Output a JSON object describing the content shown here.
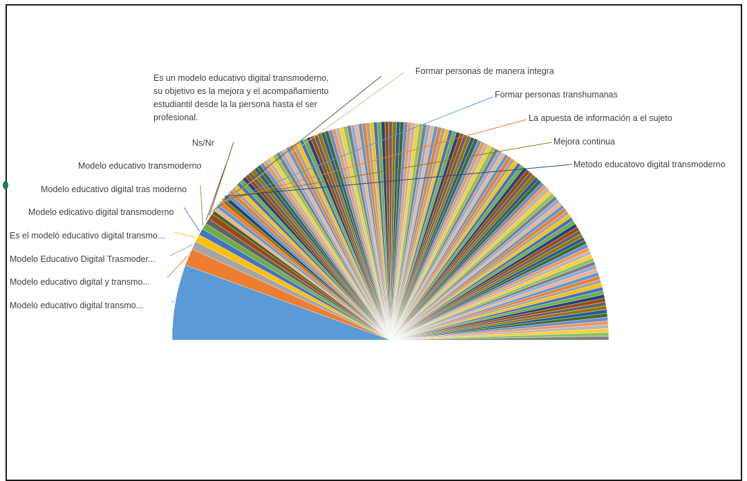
{
  "chart_data": {
    "type": "pie",
    "title": "",
    "palette": [
      "#5B9BD5",
      "#ED7D31",
      "#A5A5A5",
      "#FFC000",
      "#4472C4",
      "#70AD47",
      "#264478",
      "#9E480E",
      "#636363",
      "#997300",
      "#255E91",
      "#43682B",
      "#698ED0",
      "#F1975A",
      "#B7B7B7",
      "#FFCD33",
      "#8CC168",
      "#7F7F7F",
      "#8FAADC",
      "#F4B183"
    ],
    "slices": [
      {
        "label": "Modelo educativo digital transmo...",
        "value": 20,
        "color": "#5B9BD5"
      },
      {
        "label": "Modelo educativo digital y transmo...",
        "value": 4.5,
        "color": "#ED7D31"
      },
      {
        "label": "Modelo Educativo Digital Trasmoder...",
        "value": 2.2,
        "color": "#A5A5A5"
      },
      {
        "label": "Es el modeló educativo digital transmo...",
        "value": 2,
        "color": "#FFC000"
      },
      {
        "label": "Modelo edicativo digital transmoderno",
        "value": 1.7,
        "color": "#4472C4"
      },
      {
        "label": "Modelo educativo digital tras moderno",
        "value": 1.7,
        "color": "#70AD47"
      },
      {
        "label": "Modelo educativo transmoderno",
        "value": 1.5,
        "color": "#636363"
      },
      {
        "label": "Ns/Nr",
        "value": 1.5,
        "color": "#9E480E"
      },
      {
        "label": "Es un modelo educativo digital transmoderno, su objetivo es la mejora y el acompañamiento estudiantil desde la la persona hasta el ser profesional.",
        "value": 1,
        "color": "#43682B"
      },
      {
        "label": "Formar personas de manera íntegra",
        "value": 1,
        "color": "#F4B183"
      },
      {
        "label": "Formar personas transhumanas",
        "value": 1,
        "color": "#5B9BD5"
      },
      {
        "label": "La apuesta de información a el sujeto",
        "value": 1,
        "color": "#ED7D31"
      },
      {
        "label": "Mejora continua",
        "value": 1,
        "color": "#997300"
      },
      {
        "label": "Metodo educatovo digital transmoderno",
        "value": 1,
        "color": "#264478"
      }
    ],
    "other_responses_count": 138,
    "other_response_value": 1,
    "legend": "none"
  }
}
